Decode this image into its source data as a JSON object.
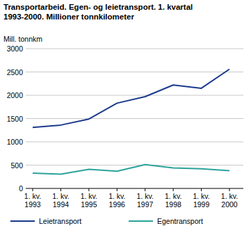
{
  "chart_data": {
    "type": "line",
    "title": "Transportarbeid. Egen- og leietransport. 1. kvartal 1993-2000. Millioner tonnkilometer",
    "y_label": "Mill. tonnkm",
    "categories": [
      "1. kv. 1993",
      "1. kv. 1994",
      "1. kv. 1995",
      "1. kv. 1996",
      "1. kv. 1997",
      "1. kv. 1998",
      "1. kv. 1999",
      "1. kv. 2000"
    ],
    "series": [
      {
        "name": "Leietransport",
        "color": "#1b3a8c",
        "values": [
          1310,
          1360,
          1490,
          1830,
          1970,
          2220,
          2150,
          2560
        ]
      },
      {
        "name": "Egentransport",
        "color": "#2aa39a",
        "values": [
          330,
          305,
          410,
          370,
          510,
          440,
          420,
          380
        ]
      }
    ],
    "ylim": [
      0,
      3000
    ],
    "yticks": [
      0,
      500,
      1000,
      1500,
      2000,
      2500,
      3000
    ],
    "grid": true,
    "legend": "bottom"
  }
}
